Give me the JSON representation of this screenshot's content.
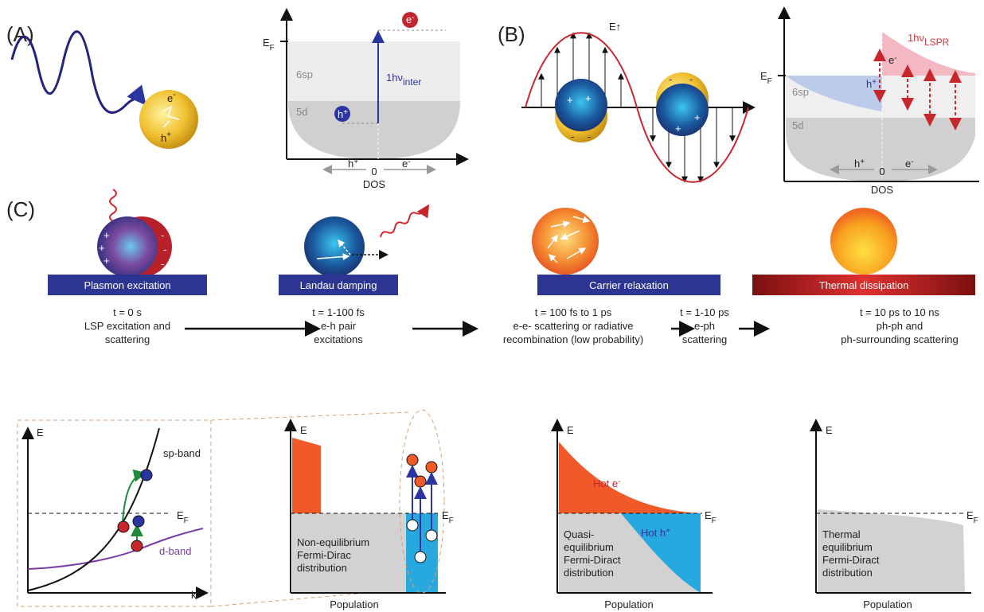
{
  "panel_a": {
    "label": "(A)",
    "sphere_electron": {
      "text": "e",
      "sup": "-"
    },
    "sphere_hole": {
      "text": "h",
      "sup": "+"
    },
    "fermi_level": {
      "text": "E",
      "sub": "F"
    },
    "band_upper": "6sp",
    "band_lower": "5d",
    "transition": {
      "text": "1hν",
      "sub": "inter"
    },
    "excited_electron": {
      "text": "e",
      "sup": "-"
    },
    "excited_hole": {
      "text": "h",
      "sup": "+"
    },
    "axis": {
      "left": {
        "text": "h",
        "sup": "+"
      },
      "zero": "0",
      "right": {
        "text": "e",
        "sup": "-"
      },
      "label": "DOS"
    }
  },
  "panel_b": {
    "label": "(B)",
    "field": "E↑",
    "plus": "+",
    "minus": "-",
    "fermi_level": {
      "text": "E",
      "sub": "F"
    },
    "band_upper": "6sp",
    "band_lower": "5d",
    "hole": {
      "text": "h",
      "sup": "+"
    },
    "electron": {
      "text": "e",
      "sup": "-"
    },
    "transition": {
      "text": "1hν",
      "sub": "LSPR"
    },
    "axis": {
      "left": {
        "text": "h",
        "sup": "+"
      },
      "zero": "0",
      "right": {
        "text": "e",
        "sup": "-"
      },
      "label": "DOS"
    }
  },
  "panel_c": {
    "label": "(C)",
    "plus": "+",
    "minus": "-",
    "stages": [
      {
        "name": "Plasmon excitation",
        "time": "t = 0 s",
        "description": [
          "LSP excitation and",
          "scattering"
        ]
      },
      {
        "name": "Landau damping",
        "time": "t = 1-100 fs",
        "description": [
          "e-h pair",
          "excitations"
        ]
      },
      {
        "name": "Carrier relaxation",
        "time": "t = 100 fs to 1 ps",
        "description": [
          "e-e- scattering or radiative",
          "recombination (low probability)"
        ]
      },
      {
        "name": "Thermal dissipation",
        "time": "t = 10 ps to 10 ns",
        "description": [
          "ph-ph and",
          "ph-surrounding scattering"
        ]
      }
    ],
    "intermediate": {
      "time": "t = 1-10 ps",
      "description": [
        "e-ph",
        "scattering"
      ]
    },
    "plots": [
      {
        "y_axis": "E",
        "x_axis": "k",
        "upper_band": "sp-band",
        "lower_band": "d-band",
        "fermi": {
          "text": "E",
          "sub": "F"
        }
      },
      {
        "y_axis": "E",
        "x_axis": "Population",
        "fermi": {
          "text": "E",
          "sub": "F"
        },
        "caption": [
          "Non-equilibrium",
          "Fermi-Dirac",
          "distribution"
        ]
      },
      {
        "y_axis": "E",
        "x_axis": "Population",
        "fermi": {
          "text": "E",
          "sub": "F"
        },
        "hot_electrons": {
          "text": "Hot e",
          "sup": "-"
        },
        "hot_holes": {
          "text": "Hot h",
          "sup": "+"
        },
        "caption": [
          "Quasi-",
          "equilibrium",
          "Fermi-Diract",
          "distribution"
        ]
      },
      {
        "y_axis": "E",
        "x_axis": "Population",
        "fermi": {
          "text": "E",
          "sub": "F"
        },
        "caption": [
          "Thermal",
          "equilibrium",
          "Fermi-Diract",
          "distribution"
        ]
      }
    ]
  }
}
